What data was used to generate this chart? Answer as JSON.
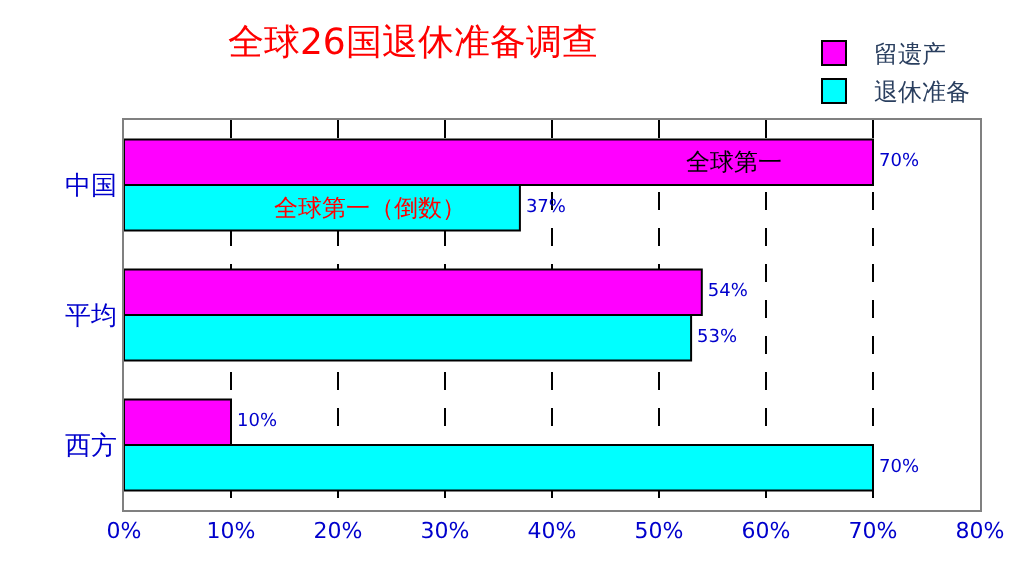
{
  "chart_data": {
    "type": "bar",
    "orientation": "horizontal",
    "title": "全球26国退休准备调查",
    "categories": [
      "中国",
      "平均",
      "西方"
    ],
    "series": [
      {
        "name": "留遗产",
        "color": "#ff00ff",
        "values": [
          70,
          54,
          10
        ],
        "value_labels": [
          "70%",
          "54%",
          "10%"
        ]
      },
      {
        "name": "退休准备",
        "color": "#00ffff",
        "values": [
          37,
          53,
          70
        ],
        "value_labels": [
          "37%",
          "53%",
          "70%"
        ]
      }
    ],
    "xlim": [
      0,
      80
    ],
    "xticks": [
      {
        "value": 0,
        "label": "0%"
      },
      {
        "value": 10,
        "label": "10%"
      },
      {
        "value": 20,
        "label": "20%"
      },
      {
        "value": 30,
        "label": "30%"
      },
      {
        "value": 40,
        "label": "40%"
      },
      {
        "value": 50,
        "label": "50%"
      },
      {
        "value": 60,
        "label": "60%"
      },
      {
        "value": 70,
        "label": "70%"
      },
      {
        "value": 80,
        "label": "80%"
      }
    ],
    "annotations": [
      {
        "text": "全球第一",
        "x": 57,
        "y": "中国"
      },
      {
        "text": "全球第一（倒数）",
        "x": 23,
        "y": "中国"
      }
    ],
    "grid": "x",
    "legend": "top right"
  }
}
